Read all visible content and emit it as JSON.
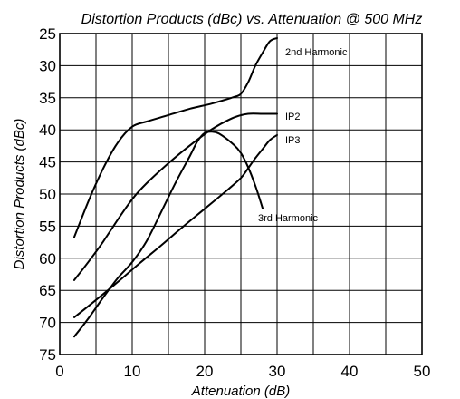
{
  "chart_data": {
    "type": "line",
    "title": "Distortion Products (dBc) vs. Attenuation @ 500 MHz",
    "xlabel": "Attenuation (dB)",
    "ylabel": "Distortion Products (dBc)",
    "xlim": [
      0,
      50
    ],
    "ylim": [
      25,
      75
    ],
    "y_inverted": true,
    "x_grid_step": 5,
    "y_grid_step": 5,
    "x_ticks": [
      0,
      10,
      20,
      30,
      40,
      50
    ],
    "y_ticks": [
      25,
      30,
      35,
      40,
      45,
      50,
      55,
      60,
      65,
      70,
      75
    ],
    "grid": true,
    "legend": "none (series labeled inline)",
    "series": [
      {
        "name": "2nd Harmonic",
        "points": [
          [
            2,
            56.7
          ],
          [
            4,
            51
          ],
          [
            6,
            46
          ],
          [
            8,
            42
          ],
          [
            10,
            39.5
          ],
          [
            12,
            38.7
          ],
          [
            15,
            37.7
          ],
          [
            18,
            36.7
          ],
          [
            21,
            35.9
          ],
          [
            24,
            34.9
          ],
          [
            25,
            34.4
          ],
          [
            26,
            32.6
          ],
          [
            27,
            30
          ],
          [
            28,
            28
          ],
          [
            29,
            26.2
          ],
          [
            30,
            25.7
          ]
        ]
      },
      {
        "name": "IP2",
        "points": [
          [
            2,
            63.4
          ],
          [
            4,
            60.5
          ],
          [
            6,
            57.4
          ],
          [
            8,
            54
          ],
          [
            10,
            50.8
          ],
          [
            12,
            48.3
          ],
          [
            15,
            45.2
          ],
          [
            18,
            42.4
          ],
          [
            21,
            39.9
          ],
          [
            24,
            38.1
          ],
          [
            26,
            37.5
          ],
          [
            28,
            37.5
          ],
          [
            30,
            37.5
          ]
        ]
      },
      {
        "name": "IP3",
        "points": [
          [
            2,
            69.2
          ],
          [
            5,
            66.5
          ],
          [
            8,
            63.7
          ],
          [
            11,
            60.8
          ],
          [
            14,
            58
          ],
          [
            17,
            55.1
          ],
          [
            20,
            52.3
          ],
          [
            23,
            49.5
          ],
          [
            25,
            47.5
          ],
          [
            26,
            46
          ],
          [
            27,
            44.4
          ],
          [
            28,
            43
          ],
          [
            29,
            41.6
          ],
          [
            30,
            40.8
          ]
        ]
      },
      {
        "name": "3rd Harmonic",
        "points": [
          [
            2,
            72.2
          ],
          [
            4,
            69.3
          ],
          [
            6,
            66.1
          ],
          [
            8,
            63.1
          ],
          [
            10,
            60.6
          ],
          [
            12,
            57.3
          ],
          [
            14,
            52.8
          ],
          [
            16,
            48.2
          ],
          [
            18,
            44
          ],
          [
            19,
            41.8
          ],
          [
            20,
            40.5
          ],
          [
            21,
            40.3
          ],
          [
            22,
            40.6
          ],
          [
            24,
            42.3
          ],
          [
            25,
            43.6
          ],
          [
            26,
            45.8
          ],
          [
            27,
            48.7
          ],
          [
            28,
            52.2
          ]
        ]
      }
    ]
  }
}
